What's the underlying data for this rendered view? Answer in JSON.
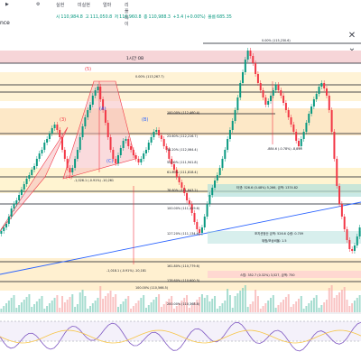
{
  "header": {
    "symbol_fragment": "nce",
    "ohlc": {
      "label_a": "시",
      "open": "110,984.8",
      "label_h": "고",
      "high": "111,050.8",
      "label_l": "저",
      "low": "110,960.8",
      "label_c": "종",
      "close": "110,988.3",
      "change": "+3.4 (+0.00%)",
      "label_vol": "볼륨",
      "volume": "685.35"
    }
  },
  "toolbar": {
    "items": [
      "실현",
      "미실현",
      "얼마",
      "리플레이"
    ]
  },
  "chart_data": {
    "type": "candlestick",
    "timeframe_box": "1시간 OB",
    "fib_levels": [
      {
        "ratio": "0.00%",
        "price": "115,230.6"
      },
      {
        "ratio": "0.00%",
        "price": "113,267.7"
      },
      {
        "ratio": "100.00%",
        "price": "112,460.4"
      },
      {
        "ratio": "23.60%",
        "price": "112,216.7"
      },
      {
        "ratio": "38.20%",
        "price": "112,064.4"
      },
      {
        "ratio": "50.00%",
        "price": "111,941.8"
      },
      {
        "ratio": "61.80%",
        "price": "111,818.4"
      },
      {
        "ratio": "78.60%",
        "price": "111,643.2"
      },
      {
        "ratio": "100.00%",
        "price": "111,419.6"
      },
      {
        "ratio": "127.20%",
        "price": "111,134.6"
      },
      {
        "ratio": "161.80%",
        "price": "110,779.6"
      },
      {
        "ratio": "178.60%",
        "price": "110,600.5"
      },
      {
        "ratio": "100.00%",
        "price": "110,566.5"
      },
      {
        "ratio": "200.00%",
        "price": "110,368.8"
      }
    ],
    "waves": [
      "(3)",
      "(4)",
      "(5)",
      "(A)",
      "(B)",
      "(C)"
    ],
    "measures": [
      "-1,026.1 (-0.91%) -10,261",
      "-1,018.1 (-0.91%) -10,181",
      "-884.6 (-0.78%) -8,846"
    ],
    "info_boxes": [
      "타겟: 526.6 (0.48%) 5,266, 금액: 1374.82",
      "포지션정산 금액: 526.6 수량: 0.709",
      "위험/보상비율: 1.5",
      "스탑: 352.7 (0.32%) 3,527, 금액: 750"
    ]
  }
}
